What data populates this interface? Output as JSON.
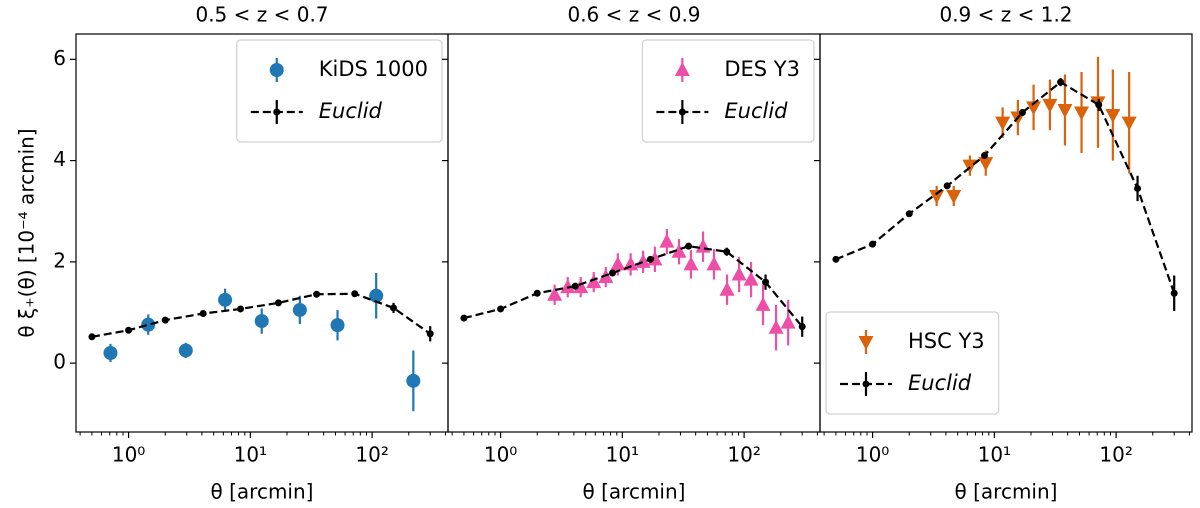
{
  "chart_data": [
    {
      "type": "errorbar",
      "title": "0.5 < z < 0.7",
      "xlabel": "θ [arcmin]",
      "ylabel": "θ ξ₊(θ) [10⁻⁴ arcmin]",
      "xscale": "log",
      "xlim": [
        0.37,
        420
      ],
      "ylim": [
        -1.36,
        6.5
      ],
      "xticks": [
        {
          "value": 1,
          "label": "10⁰"
        },
        {
          "value": 10,
          "label": "10¹"
        },
        {
          "value": 100,
          "label": "10²"
        }
      ],
      "yticks": [
        0,
        2,
        4,
        6
      ],
      "legend": "upper right",
      "series": [
        {
          "name": "KiDS 1000",
          "color": "#1f77b4",
          "marker": "circle",
          "x": [
            0.71,
            1.45,
            2.95,
            6.2,
            12.4,
            25.5,
            52,
            108,
            218
          ],
          "values": [
            0.2,
            0.76,
            0.25,
            1.25,
            0.83,
            1.05,
            0.75,
            1.33,
            -0.35
          ],
          "errors": [
            0.18,
            0.2,
            0.15,
            0.22,
            0.25,
            0.28,
            0.3,
            0.45,
            0.6
          ]
        },
        {
          "name": "Euclid",
          "color": "#000000",
          "marker": "dot",
          "line": "dashed",
          "font_style": "italic",
          "x": [
            0.5,
            1,
            2,
            4.1,
            8.3,
            17,
            35,
            72,
            150,
            300
          ],
          "values": [
            0.52,
            0.65,
            0.85,
            0.98,
            1.07,
            1.19,
            1.36,
            1.37,
            1.09,
            0.58
          ],
          "errors": [
            0.02,
            0.02,
            0.02,
            0.02,
            0.02,
            0.03,
            0.04,
            0.05,
            0.1,
            0.15
          ]
        }
      ]
    },
    {
      "type": "errorbar",
      "title": "0.6 < z < 0.9",
      "xlabel": "θ [arcmin]",
      "xscale": "log",
      "xlim": [
        0.37,
        420
      ],
      "xticks": [
        {
          "value": 1,
          "label": "10⁰"
        },
        {
          "value": 10,
          "label": "10¹"
        },
        {
          "value": 100,
          "label": "10²"
        }
      ],
      "legend": "upper right",
      "series": [
        {
          "name": "DES Y3",
          "color": "#ee4fa6",
          "marker": "triangle-up",
          "x": [
            2.78,
            3.56,
            4.55,
            5.82,
            7.31,
            9.18,
            11.7,
            14.8,
            18.5,
            23.2,
            29.2,
            36.6,
            46,
            56.6,
            72.4,
            91,
            114,
            143,
            183,
            230
          ],
          "values": [
            1.35,
            1.5,
            1.5,
            1.6,
            1.7,
            1.95,
            1.95,
            2.0,
            2.05,
            2.4,
            2.2,
            1.95,
            2.3,
            1.95,
            1.45,
            1.75,
            1.65,
            1.15,
            0.7,
            0.8
          ],
          "errors": [
            0.2,
            0.2,
            0.2,
            0.2,
            0.2,
            0.22,
            0.22,
            0.22,
            0.25,
            0.25,
            0.25,
            0.28,
            0.3,
            0.3,
            0.3,
            0.35,
            0.35,
            0.4,
            0.45,
            0.45
          ]
        },
        {
          "name": "Euclid",
          "color": "#000000",
          "marker": "dot",
          "line": "dashed",
          "font_style": "italic",
          "x": [
            0.5,
            1,
            2,
            4.1,
            8.3,
            17,
            35,
            72,
            150,
            300
          ],
          "values": [
            0.89,
            1.07,
            1.38,
            1.52,
            1.78,
            2.05,
            2.31,
            2.2,
            1.6,
            0.72
          ],
          "errors": [
            0.02,
            0.02,
            0.02,
            0.02,
            0.03,
            0.03,
            0.04,
            0.08,
            0.15,
            0.2
          ]
        }
      ]
    },
    {
      "type": "errorbar",
      "title": "0.9 < z < 1.2",
      "xlabel": "θ [arcmin]",
      "xscale": "log",
      "xlim": [
        0.37,
        420
      ],
      "xticks": [
        {
          "value": 1,
          "label": "10⁰"
        },
        {
          "value": 10,
          "label": "10¹"
        },
        {
          "value": 100,
          "label": "10²"
        }
      ],
      "legend": "lower left",
      "series": [
        {
          "name": "HSC Y3",
          "color": "#d9620a",
          "marker": "triangle-down",
          "x": [
            3.36,
            4.64,
            6.3,
            8.5,
            11.7,
            15.6,
            21,
            28.6,
            38,
            52,
            71,
            94,
            128
          ],
          "values": [
            3.3,
            3.3,
            3.9,
            3.95,
            4.75,
            4.85,
            5.05,
            5.1,
            5.0,
            4.95,
            5.15,
            4.9,
            4.75
          ],
          "errors": [
            0.2,
            0.2,
            0.2,
            0.25,
            0.3,
            0.35,
            0.45,
            0.5,
            0.7,
            0.8,
            0.9,
            0.9,
            1.0
          ]
        },
        {
          "name": "Euclid",
          "color": "#000000",
          "marker": "dot",
          "line": "dashed",
          "font_style": "italic",
          "x": [
            0.5,
            1,
            2,
            4.1,
            8.3,
            17,
            35,
            72,
            150,
            300
          ],
          "values": [
            2.05,
            2.35,
            2.95,
            3.5,
            4.1,
            4.95,
            5.55,
            5.1,
            3.45,
            1.38
          ],
          "errors": [
            0.02,
            0.02,
            0.03,
            0.03,
            0.04,
            0.05,
            0.08,
            0.12,
            0.25,
            0.35
          ]
        }
      ]
    }
  ]
}
